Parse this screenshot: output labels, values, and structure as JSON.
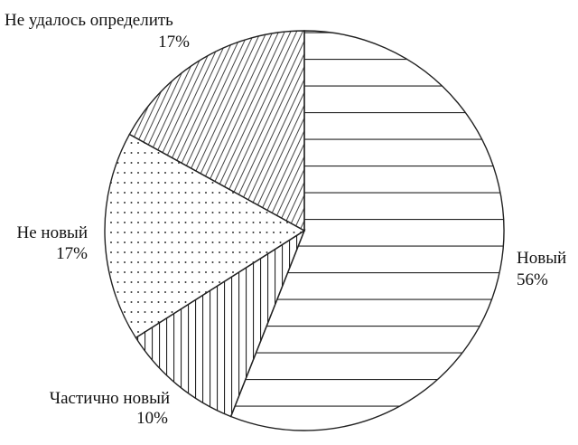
{
  "chart_data": {
    "type": "pie",
    "title": "",
    "start": "top",
    "direction": "clockwise",
    "slices": [
      {
        "label": "Новый",
        "value": 56,
        "value_label": "56%",
        "pattern": "horizontal-lines"
      },
      {
        "label": "Частично новый",
        "value": 10,
        "value_label": "10%",
        "pattern": "vertical-lines"
      },
      {
        "label": "Не новый",
        "value": 17,
        "value_label": "17%",
        "pattern": "dots"
      },
      {
        "label": "Не удалось определить",
        "value": 17,
        "value_label": "17%",
        "pattern": "diagonal-lines"
      }
    ],
    "colors": {
      "stroke": "#222222",
      "fill": "#ffffff"
    }
  }
}
